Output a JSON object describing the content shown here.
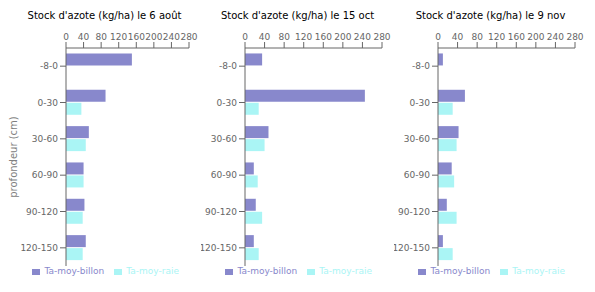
{
  "chart_data": [
    {
      "type": "bar",
      "orientation": "horizontal",
      "title": "Stock d'azote (kg/ha) le 6 août",
      "ylabel": "profondeur (cm)",
      "categories": [
        "-8-0",
        "0-30",
        "30-60",
        "60-90",
        "90-120",
        "120-150"
      ],
      "series": [
        {
          "name": "Ta-moy-billon",
          "color": "#8888cc",
          "values": [
            150,
            90,
            52,
            40,
            42,
            45
          ]
        },
        {
          "name": "Ta-moy-raie",
          "color": "#aaf5f5",
          "values": [
            0,
            35,
            45,
            40,
            38,
            38
          ]
        }
      ],
      "xlim": [
        0,
        280
      ],
      "xticks": [
        0,
        40,
        80,
        120,
        160,
        200,
        240,
        280
      ],
      "grid": false,
      "legend": "lower right"
    },
    {
      "type": "bar",
      "orientation": "horizontal",
      "title": "Stock d'azote (kg/ha) le 15 oct",
      "categories": [
        "-8-0",
        "0-30",
        "30-60",
        "60-90",
        "90-120",
        "120-150"
      ],
      "series": [
        {
          "name": "Ta-moy-billon",
          "color": "#8888cc",
          "values": [
            35,
            245,
            48,
            18,
            22,
            18
          ]
        },
        {
          "name": "Ta-moy-raie",
          "color": "#aaf5f5",
          "values": [
            0,
            28,
            40,
            26,
            35,
            28
          ]
        }
      ],
      "xlim": [
        0,
        280
      ],
      "xticks": [
        0,
        40,
        80,
        120,
        160,
        200,
        240,
        280
      ],
      "grid": false,
      "legend": "lower right"
    },
    {
      "type": "bar",
      "orientation": "horizontal",
      "title": "Stock d'azote (kg/ha) le 9 nov",
      "categories": [
        "-8-0",
        "0-30",
        "30-60",
        "60-90",
        "90-120",
        "120-150"
      ],
      "series": [
        {
          "name": "Ta-moy-billon",
          "color": "#8888cc",
          "values": [
            10,
            55,
            42,
            28,
            18,
            10
          ]
        },
        {
          "name": "Ta-moy-raie",
          "color": "#aaf5f5",
          "values": [
            0,
            30,
            38,
            33,
            38,
            30
          ]
        }
      ],
      "xlim": [
        0,
        280
      ],
      "xticks": [
        0,
        40,
        80,
        120,
        160,
        200,
        240,
        280
      ],
      "grid": false,
      "legend": "lower right"
    }
  ]
}
